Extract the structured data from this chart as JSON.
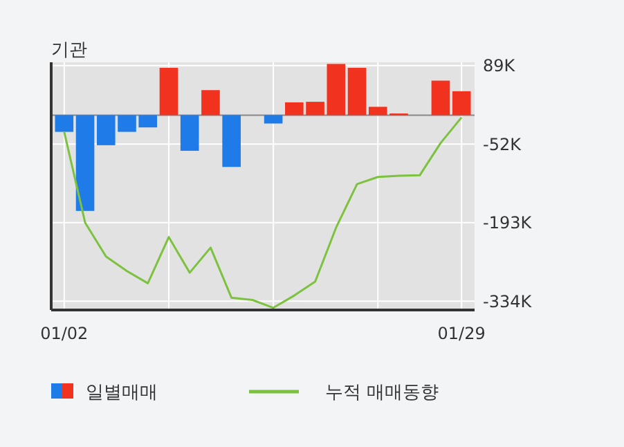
{
  "chart_data": {
    "type": "bar",
    "title": "기관",
    "categories": [
      "01/02",
      null,
      null,
      null,
      null,
      null,
      null,
      null,
      null,
      null,
      null,
      null,
      null,
      null,
      null,
      null,
      null,
      null,
      null,
      "01/29"
    ],
    "series": [
      {
        "name": "일별매매",
        "colors": [
          "#1e7be8",
          "#1e7be8",
          "#1e7be8",
          "#1e7be8",
          "#1e7be8",
          "#f0321e",
          "#1e7be8",
          "#f0321e",
          "#1e7be8",
          "#f0321e",
          "#1e7be8",
          "#f0321e",
          "#f0321e",
          "#f0321e",
          "#f0321e",
          "#f0321e",
          "#f0321e",
          "#f0321e",
          "#f0321e",
          "#f0321e"
        ],
        "values": [
          -30000,
          -172000,
          -54000,
          -30000,
          -22000,
          85000,
          -64000,
          45000,
          -93000,
          0,
          -15000,
          23000,
          24000,
          92000,
          85000,
          15000,
          3000,
          0,
          62000,
          43000
        ]
      },
      {
        "name": "누적 매매동향",
        "type": "line",
        "color": "#7cc23f",
        "values": [
          -30000,
          -193000,
          -254000,
          -280000,
          -302000,
          -219000,
          -283000,
          -238000,
          -328000,
          -332000,
          -346000,
          -324000,
          -299000,
          -202000,
          -124000,
          -111000,
          -109000,
          -108000,
          -50000,
          -4000
        ]
      }
    ],
    "ylim": [
      -350000,
      95000
    ],
    "yticks": [
      {
        "value": 89000,
        "label": "89K"
      },
      {
        "value": -52000,
        "label": "-52K"
      },
      {
        "value": -193000,
        "label": "-193K"
      },
      {
        "value": -334000,
        "label": "-334K"
      }
    ],
    "grid": true,
    "legend": "bottom"
  }
}
